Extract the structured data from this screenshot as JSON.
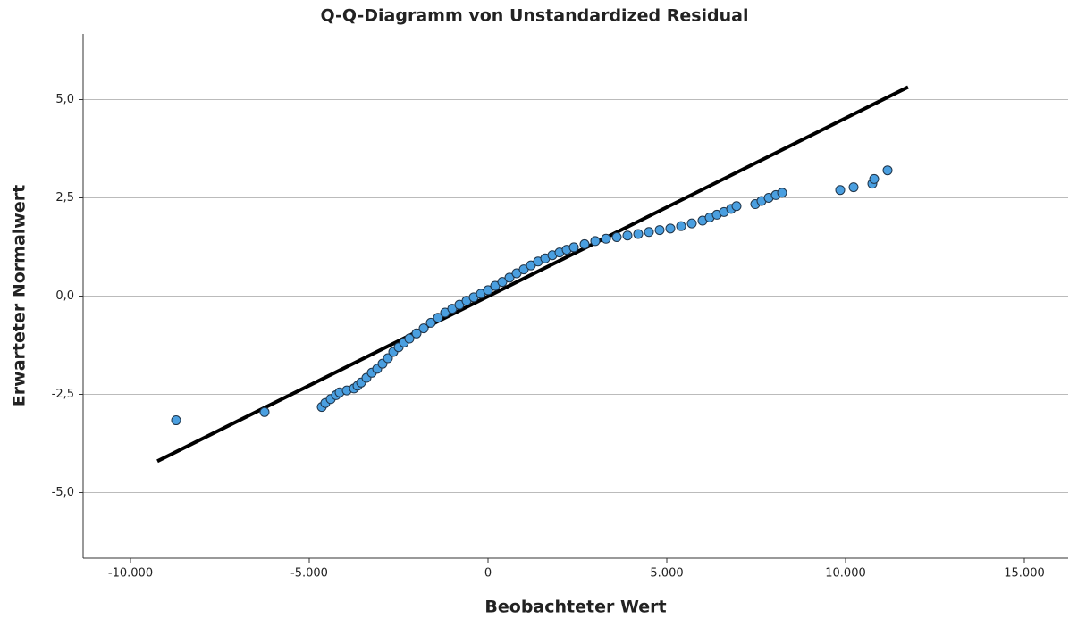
{
  "chart_data": {
    "type": "scatter",
    "title": "Q-Q-Diagramm von Unstandardized Residual",
    "x_label": "Beobachteter Wert",
    "y_label": "Erwarteter Normalwert",
    "xlim": [
      -11325,
      16225
    ],
    "ylim": [
      -6.67,
      6.67
    ],
    "xticks": [
      {
        "value": -10000,
        "label": "-10.000"
      },
      {
        "value": -5000,
        "label": "-5.000"
      },
      0,
      {
        "value": 5000,
        "label": "5.000"
      },
      {
        "value": 10000,
        "label": "10.000"
      },
      {
        "value": 15000,
        "label": "15.000"
      }
    ],
    "yticks": [
      {
        "value": -5,
        "label": "-5,0"
      },
      {
        "value": -2.5,
        "label": "-2,5"
      },
      {
        "value": 0,
        "label": "0,0"
      },
      {
        "value": 2.5,
        "label": "2,5"
      },
      {
        "value": 5,
        "label": "5,0"
      }
    ],
    "grid": true,
    "series": [
      {
        "color": "#4a9fe0",
        "x": [
          -8725,
          -6250,
          -4650,
          -4550,
          -4400,
          -4250,
          -4150,
          -3950,
          -3750,
          -3650,
          -3550,
          -3400,
          -3250,
          -3100,
          -2950,
          -2800,
          -2650,
          -2500,
          -2350,
          -2200,
          -2000,
          -1800,
          -1600,
          -1400,
          -1200,
          -1000,
          -800,
          -600,
          -400,
          -200,
          0,
          200,
          400,
          600,
          800,
          1000,
          1200,
          1400,
          1600,
          1800,
          2000,
          2200,
          2400,
          2700,
          3000,
          3300,
          3600,
          3900,
          4200,
          4500,
          4800,
          5100,
          5400,
          5700,
          6000,
          6200,
          6400,
          6600,
          6800,
          6950,
          7475,
          7650,
          7850,
          8050,
          8225,
          9850,
          10225,
          10750,
          10800,
          11175
        ],
        "y": [
          -3.16,
          -2.95,
          -2.82,
          -2.72,
          -2.62,
          -2.52,
          -2.45,
          -2.4,
          -2.35,
          -2.28,
          -2.2,
          -2.08,
          -1.95,
          -1.85,
          -1.72,
          -1.58,
          -1.42,
          -1.3,
          -1.18,
          -1.08,
          -0.95,
          -0.82,
          -0.68,
          -0.55,
          -0.42,
          -0.32,
          -0.22,
          -0.12,
          -0.03,
          0.06,
          0.15,
          0.26,
          0.36,
          0.47,
          0.58,
          0.68,
          0.78,
          0.88,
          0.96,
          1.04,
          1.11,
          1.18,
          1.24,
          1.32,
          1.4,
          1.46,
          1.5,
          1.54,
          1.58,
          1.63,
          1.68,
          1.72,
          1.78,
          1.85,
          1.92,
          2.0,
          2.07,
          2.14,
          2.22,
          2.29,
          2.34,
          2.42,
          2.5,
          2.57,
          2.63,
          2.7,
          2.77,
          2.86,
          2.98,
          3.2
        ]
      }
    ],
    "reference_line": {
      "color": "#000000",
      "x": [
        -9250,
        11750
      ],
      "y": [
        -4.2,
        5.32
      ]
    }
  }
}
